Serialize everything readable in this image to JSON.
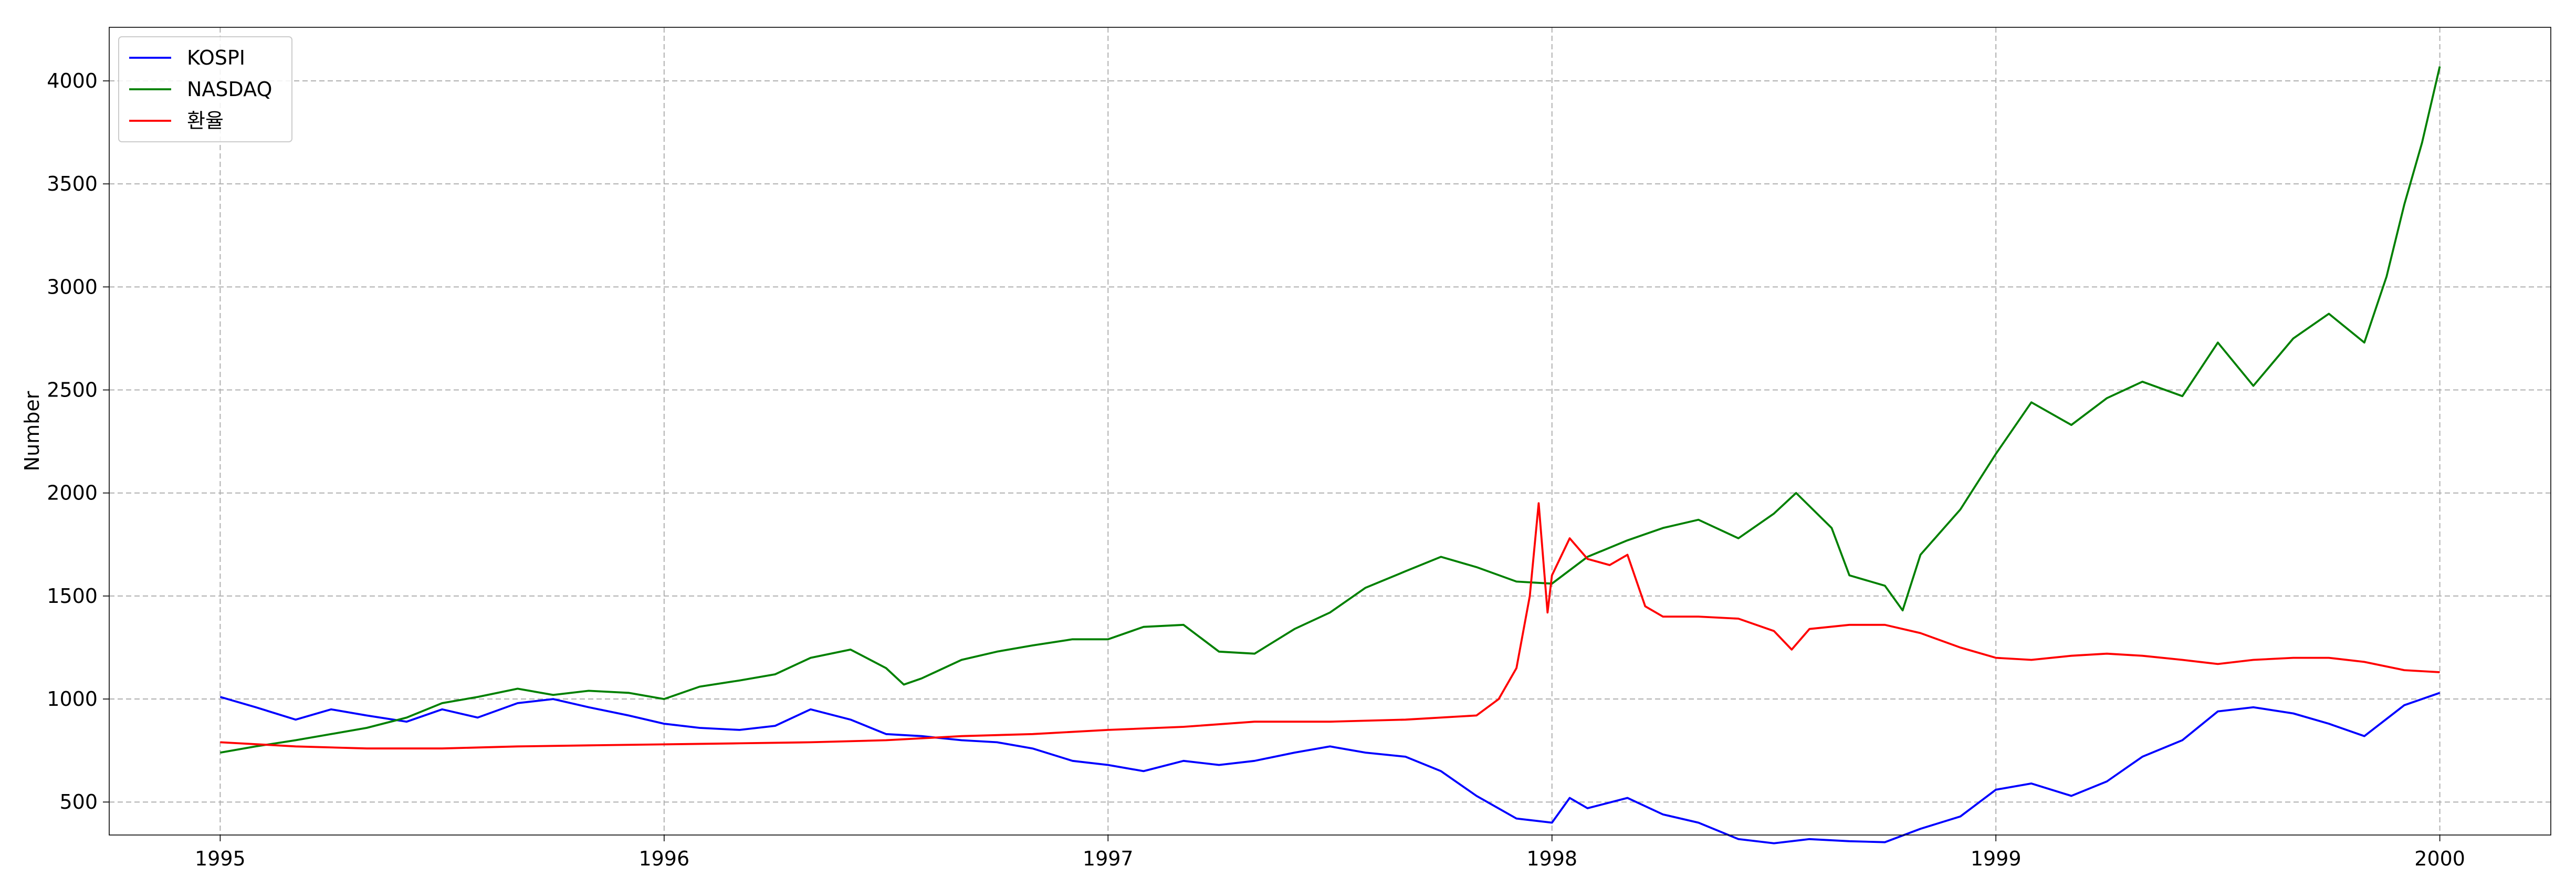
{
  "chart_data": {
    "type": "line",
    "title": "",
    "xlabel": "",
    "ylabel": "Number",
    "xlim": [
      1994.75,
      2000.25
    ],
    "ylim": [
      340,
      4260
    ],
    "x_ticks": [
      {
        "value": 1995,
        "label": "1995"
      },
      {
        "value": 1996,
        "label": "1996"
      },
      {
        "value": 1997,
        "label": "1997"
      },
      {
        "value": 1998,
        "label": "1998"
      },
      {
        "value": 1999,
        "label": "1999"
      },
      {
        "value": 2000,
        "label": "2000"
      }
    ],
    "y_ticks": [
      {
        "value": 500,
        "label": "500"
      },
      {
        "value": 1000,
        "label": "1000"
      },
      {
        "value": 1500,
        "label": "1500"
      },
      {
        "value": 2000,
        "label": "2000"
      },
      {
        "value": 2500,
        "label": "2500"
      },
      {
        "value": 3000,
        "label": "3000"
      },
      {
        "value": 3500,
        "label": "3500"
      },
      {
        "value": 4000,
        "label": "4000"
      }
    ],
    "grid": true,
    "legend_position": "top-left",
    "series": [
      {
        "name": "KOSPI",
        "color": "#0000ff",
        "points": [
          [
            1995.0,
            1010
          ],
          [
            1995.08,
            960
          ],
          [
            1995.17,
            900
          ],
          [
            1995.25,
            950
          ],
          [
            1995.33,
            920
          ],
          [
            1995.42,
            890
          ],
          [
            1995.5,
            950
          ],
          [
            1995.58,
            910
          ],
          [
            1995.67,
            980
          ],
          [
            1995.75,
            1000
          ],
          [
            1995.83,
            960
          ],
          [
            1995.92,
            920
          ],
          [
            1996.0,
            880
          ],
          [
            1996.08,
            860
          ],
          [
            1996.17,
            850
          ],
          [
            1996.25,
            870
          ],
          [
            1996.33,
            950
          ],
          [
            1996.42,
            900
          ],
          [
            1996.5,
            830
          ],
          [
            1996.58,
            820
          ],
          [
            1996.67,
            800
          ],
          [
            1996.75,
            790
          ],
          [
            1996.83,
            760
          ],
          [
            1996.92,
            700
          ],
          [
            1997.0,
            680
          ],
          [
            1997.08,
            650
          ],
          [
            1997.17,
            700
          ],
          [
            1997.25,
            680
          ],
          [
            1997.33,
            700
          ],
          [
            1997.42,
            740
          ],
          [
            1997.5,
            770
          ],
          [
            1997.58,
            740
          ],
          [
            1997.67,
            720
          ],
          [
            1997.75,
            650
          ],
          [
            1997.83,
            530
          ],
          [
            1997.92,
            420
          ],
          [
            1998.0,
            400
          ],
          [
            1998.04,
            520
          ],
          [
            1998.08,
            470
          ],
          [
            1998.17,
            520
          ],
          [
            1998.25,
            440
          ],
          [
            1998.33,
            400
          ],
          [
            1998.42,
            320
          ],
          [
            1998.5,
            300
          ],
          [
            1998.58,
            320
          ],
          [
            1998.67,
            310
          ],
          [
            1998.75,
            305
          ],
          [
            1998.83,
            370
          ],
          [
            1998.92,
            430
          ],
          [
            1999.0,
            560
          ],
          [
            1999.08,
            590
          ],
          [
            1999.17,
            530
          ],
          [
            1999.25,
            600
          ],
          [
            1999.33,
            720
          ],
          [
            1999.42,
            800
          ],
          [
            1999.5,
            940
          ],
          [
            1999.58,
            960
          ],
          [
            1999.67,
            930
          ],
          [
            1999.75,
            880
          ],
          [
            1999.83,
            820
          ],
          [
            1999.92,
            970
          ],
          [
            2000.0,
            1030
          ]
        ]
      },
      {
        "name": "NASDAQ",
        "color": "#008000",
        "points": [
          [
            1995.0,
            740
          ],
          [
            1995.08,
            770
          ],
          [
            1995.17,
            800
          ],
          [
            1995.25,
            830
          ],
          [
            1995.33,
            860
          ],
          [
            1995.42,
            910
          ],
          [
            1995.5,
            980
          ],
          [
            1995.58,
            1010
          ],
          [
            1995.67,
            1050
          ],
          [
            1995.75,
            1020
          ],
          [
            1995.83,
            1040
          ],
          [
            1995.92,
            1030
          ],
          [
            1996.0,
            1000
          ],
          [
            1996.08,
            1060
          ],
          [
            1996.17,
            1090
          ],
          [
            1996.25,
            1120
          ],
          [
            1996.33,
            1200
          ],
          [
            1996.42,
            1240
          ],
          [
            1996.5,
            1150
          ],
          [
            1996.54,
            1070
          ],
          [
            1996.58,
            1100
          ],
          [
            1996.67,
            1190
          ],
          [
            1996.75,
            1230
          ],
          [
            1996.83,
            1260
          ],
          [
            1996.92,
            1290
          ],
          [
            1997.0,
            1290
          ],
          [
            1997.08,
            1350
          ],
          [
            1997.17,
            1360
          ],
          [
            1997.25,
            1230
          ],
          [
            1997.33,
            1220
          ],
          [
            1997.42,
            1340
          ],
          [
            1997.5,
            1420
          ],
          [
            1997.58,
            1540
          ],
          [
            1997.67,
            1620
          ],
          [
            1997.75,
            1690
          ],
          [
            1997.83,
            1640
          ],
          [
            1997.92,
            1570
          ],
          [
            1998.0,
            1560
          ],
          [
            1998.08,
            1690
          ],
          [
            1998.17,
            1770
          ],
          [
            1998.25,
            1830
          ],
          [
            1998.33,
            1870
          ],
          [
            1998.42,
            1780
          ],
          [
            1998.5,
            1900
          ],
          [
            1998.55,
            2000
          ],
          [
            1998.63,
            1830
          ],
          [
            1998.67,
            1600
          ],
          [
            1998.75,
            1550
          ],
          [
            1998.79,
            1430
          ],
          [
            1998.83,
            1700
          ],
          [
            1998.92,
            1920
          ],
          [
            1999.0,
            2190
          ],
          [
            1999.08,
            2440
          ],
          [
            1999.17,
            2330
          ],
          [
            1999.25,
            2460
          ],
          [
            1999.33,
            2540
          ],
          [
            1999.42,
            2470
          ],
          [
            1999.5,
            2730
          ],
          [
            1999.58,
            2520
          ],
          [
            1999.67,
            2750
          ],
          [
            1999.75,
            2870
          ],
          [
            1999.83,
            2730
          ],
          [
            1999.88,
            3050
          ],
          [
            1999.92,
            3400
          ],
          [
            1999.96,
            3700
          ],
          [
            2000.0,
            4070
          ]
        ]
      },
      {
        "name": "환율",
        "color": "#ff0000",
        "points": [
          [
            1995.0,
            790
          ],
          [
            1995.17,
            770
          ],
          [
            1995.33,
            760
          ],
          [
            1995.5,
            760
          ],
          [
            1995.67,
            770
          ],
          [
            1995.83,
            775
          ],
          [
            1996.0,
            780
          ],
          [
            1996.17,
            785
          ],
          [
            1996.33,
            790
          ],
          [
            1996.5,
            800
          ],
          [
            1996.67,
            820
          ],
          [
            1996.83,
            830
          ],
          [
            1997.0,
            850
          ],
          [
            1997.17,
            865
          ],
          [
            1997.33,
            890
          ],
          [
            1997.5,
            890
          ],
          [
            1997.67,
            900
          ],
          [
            1997.83,
            920
          ],
          [
            1997.88,
            1000
          ],
          [
            1997.92,
            1150
          ],
          [
            1997.95,
            1500
          ],
          [
            1997.97,
            1950
          ],
          [
            1997.99,
            1420
          ],
          [
            1998.0,
            1600
          ],
          [
            1998.04,
            1780
          ],
          [
            1998.08,
            1680
          ],
          [
            1998.13,
            1650
          ],
          [
            1998.17,
            1700
          ],
          [
            1998.21,
            1450
          ],
          [
            1998.25,
            1400
          ],
          [
            1998.33,
            1400
          ],
          [
            1998.42,
            1390
          ],
          [
            1998.5,
            1330
          ],
          [
            1998.54,
            1240
          ],
          [
            1998.58,
            1340
          ],
          [
            1998.67,
            1360
          ],
          [
            1998.75,
            1360
          ],
          [
            1998.83,
            1320
          ],
          [
            1998.92,
            1250
          ],
          [
            1999.0,
            1200
          ],
          [
            1999.08,
            1190
          ],
          [
            1999.17,
            1210
          ],
          [
            1999.25,
            1220
          ],
          [
            1999.33,
            1210
          ],
          [
            1999.42,
            1190
          ],
          [
            1999.5,
            1170
          ],
          [
            1999.58,
            1190
          ],
          [
            1999.67,
            1200
          ],
          [
            1999.75,
            1200
          ],
          [
            1999.83,
            1180
          ],
          [
            1999.92,
            1140
          ],
          [
            2000.0,
            1130
          ]
        ]
      }
    ]
  }
}
